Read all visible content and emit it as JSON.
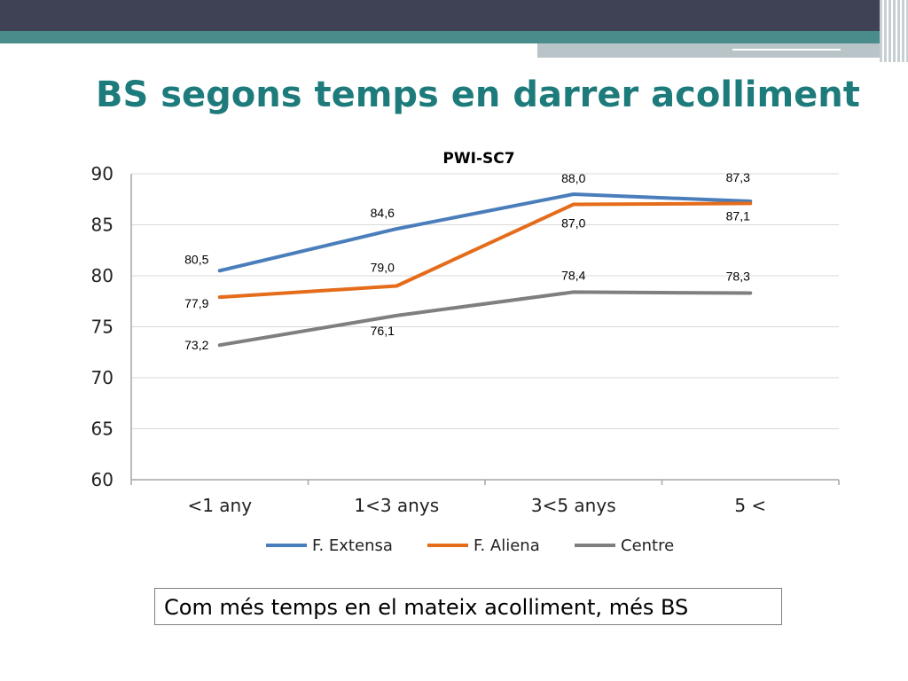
{
  "slide": {
    "title": "BS segons temps en darrer acolliment",
    "note": "Com més temps en el mateix acolliment, més BS"
  },
  "colors": {
    "title": "#1e7b7b",
    "header_dark": "#3f4254",
    "header_teal": "#4a8b8c",
    "series_blue": "#4a7ebb",
    "series_orange": "#e46c1a",
    "series_gray": "#7f7f7f"
  },
  "chart_data": {
    "type": "line",
    "title": "PWI-SC7",
    "categories": [
      "<1 any",
      "1<3 anys",
      "3<5 anys",
      "5 <"
    ],
    "ylim": [
      60,
      90
    ],
    "yticks": [
      "60",
      "65",
      "70",
      "75",
      "80",
      "85",
      "90"
    ],
    "grid": true,
    "legend": "bottom",
    "series": [
      {
        "name": "F. Extensa",
        "values": [
          80.5,
          84.6,
          88.0,
          87.3
        ],
        "labels": [
          "80,5",
          "84,6",
          "88,0",
          "87,3"
        ]
      },
      {
        "name": "F. Aliena",
        "values": [
          77.9,
          79.0,
          87.0,
          87.1
        ],
        "labels": [
          "77,9",
          "79,0",
          "87,0",
          "87,1"
        ]
      },
      {
        "name": "Centre",
        "values": [
          73.2,
          76.1,
          78.4,
          78.3
        ],
        "labels": [
          "73,2",
          "76,1",
          "78,4",
          "78,3"
        ]
      }
    ]
  }
}
